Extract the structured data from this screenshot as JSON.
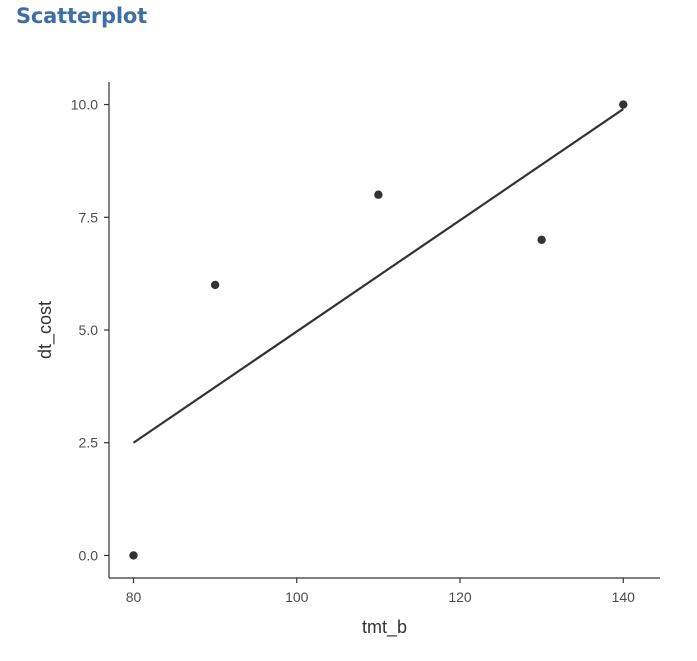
{
  "page": {
    "title": "Scatterplot"
  },
  "colors": {
    "title": "#3e6ea8",
    "axis": "#333333",
    "points": "#333333",
    "fit_line": "#333333",
    "tick_text": "#4d4d4d"
  },
  "chart_data": {
    "type": "scatter",
    "title": "",
    "xlabel": "tmt_b",
    "ylabel": "dt_cost",
    "xlim": [
      77,
      144.5
    ],
    "ylim": [
      -0.5,
      10.5
    ],
    "x_ticks": [
      80,
      100,
      120,
      140
    ],
    "x_tick_labels": [
      "80",
      "100",
      "120",
      "140"
    ],
    "y_ticks": [
      0,
      2.5,
      5,
      7.5,
      10
    ],
    "y_tick_labels": [
      "0.0",
      "2.5",
      "5.0",
      "7.5",
      "10.0"
    ],
    "grid": false,
    "series": [
      {
        "x": [
          80,
          90,
          110,
          130,
          140
        ],
        "y": [
          0,
          6,
          8,
          7,
          10
        ]
      }
    ],
    "fit_line": {
      "x": [
        80,
        140
      ],
      "y": [
        2.5,
        9.9
      ]
    }
  }
}
